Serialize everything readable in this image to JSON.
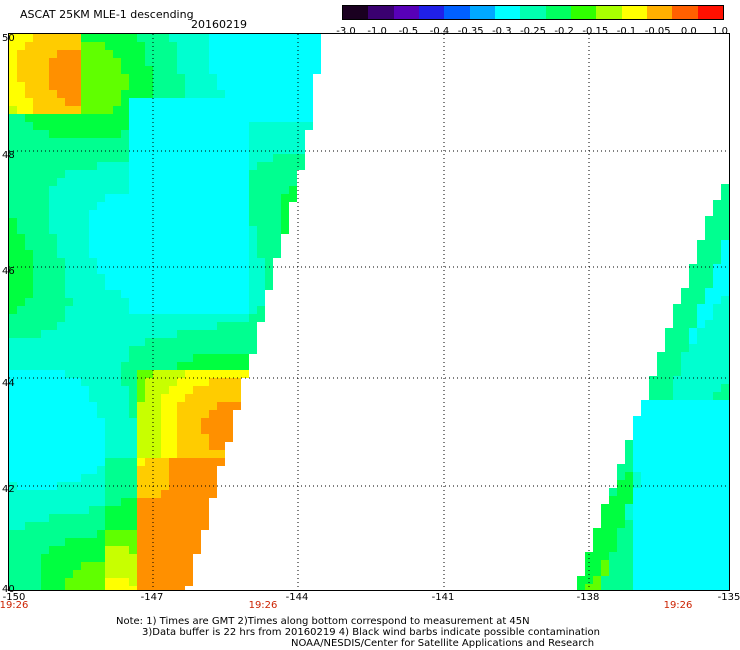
{
  "header": {
    "title": "ASCAT 25KM MLE-1 descending",
    "date": "20160219"
  },
  "colorbar": {
    "labels": [
      "-3.0",
      "-1.0",
      "-0.5",
      "-0.4",
      "-0.35",
      "-0.3",
      "-0.25",
      "-0.2",
      "-0.15",
      "-0.1",
      "-0.05",
      "0.0",
      "1.0"
    ],
    "colors": [
      "#1a0020",
      "#3a0070",
      "#5800b8",
      "#2020e8",
      "#0060ff",
      "#00a8ff",
      "#00ffff",
      "#00ffb0",
      "#00ff60",
      "#30ff00",
      "#a8ff00",
      "#ffff00",
      "#ffb000",
      "#ff6000",
      "#ff1000"
    ]
  },
  "axes": {
    "lat_labels": [
      "50",
      "48",
      "46",
      "44",
      "42",
      "40"
    ],
    "lon_labels": [
      "-150",
      "-147",
      "-144",
      "-141",
      "-138",
      "-135"
    ],
    "time_labels": [
      "19:26",
      "19:26",
      "19:26"
    ]
  },
  "notes": {
    "line1": "Note: 1) Times are GMT 2)Times along bottom correspond to measurement at 45N",
    "line2": "3)Data buffer is 22 hrs from 20160219 4) Black wind barbs indicate possible contamination",
    "line3": "NOAA/NESDIS/Center for Satellite Applications and Research"
  }
}
